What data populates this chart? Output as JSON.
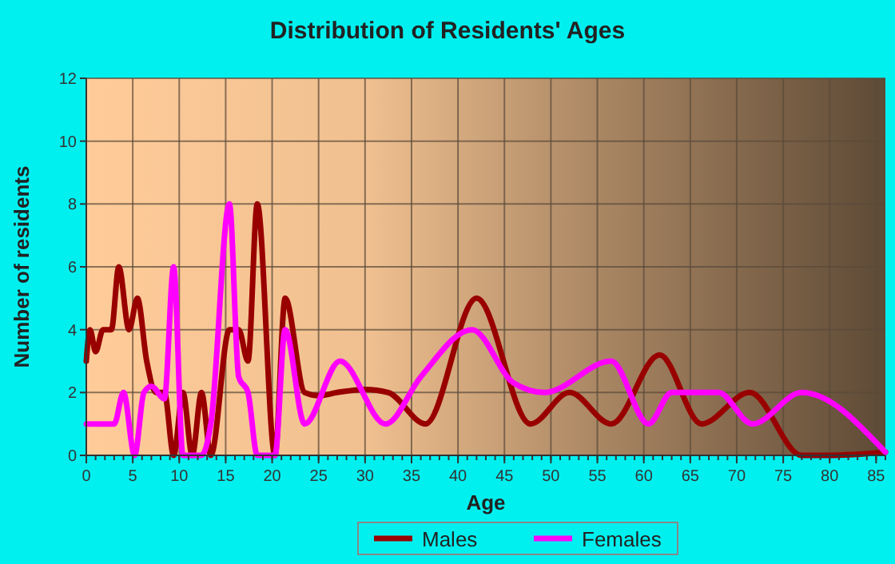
{
  "chart_data": {
    "type": "line",
    "title": "Distribution of Residents' Ages",
    "xlabel": "Age",
    "ylabel": "Number of residents",
    "xlim": [
      0,
      86
    ],
    "xticks": [
      0,
      5,
      10,
      15,
      20,
      25,
      30,
      35,
      40,
      45,
      50,
      55,
      60,
      65,
      70,
      75,
      80,
      85
    ],
    "ylim": [
      0,
      12
    ],
    "yticks": [
      0,
      2,
      4,
      6,
      8,
      10,
      12
    ],
    "grid": true,
    "legend": "bottom",
    "marker": "none",
    "line_style": "solid",
    "series": [
      {
        "name": "Males",
        "color": "#990000",
        "x": [
          0,
          0.4,
          1,
          1.8,
          2.7,
          3.5,
          4.6,
          5.5,
          6.5,
          7.5,
          8.4,
          9.4,
          10.4,
          11.4,
          12.4,
          13.4,
          15.4,
          16.4,
          17.4,
          18.4,
          20.3,
          21.4,
          23.5,
          25,
          27,
          30,
          32.5,
          36.5,
          42,
          47.8,
          52,
          56.5,
          61.7,
          66.2,
          71.4,
          77,
          80,
          86
        ],
        "values": [
          3,
          4,
          3.3,
          4,
          4,
          6,
          4,
          5,
          3,
          2,
          2,
          0,
          2,
          0,
          2,
          0,
          4,
          4,
          3,
          8,
          0,
          5,
          2,
          1.9,
          2,
          2.1,
          2,
          1,
          5,
          1,
          2,
          1,
          3.2,
          1,
          2,
          0,
          0,
          0.1
        ]
      },
      {
        "name": "Females",
        "color": "#ff00ff",
        "x": [
          0,
          3,
          4,
          5.2,
          6.2,
          7,
          8.4,
          9.4,
          10.4,
          12.4,
          13.4,
          15.4,
          16.4,
          17.4,
          18.4,
          20.3,
          21.4,
          23.5,
          27.3,
          32.2,
          36,
          41.5,
          46,
          49.3,
          56.5,
          60.5,
          63,
          68,
          71.7,
          77,
          86
        ],
        "values": [
          1,
          1,
          2,
          0,
          2,
          2.2,
          1.8,
          6,
          0,
          0,
          1,
          8,
          2.5,
          2,
          0,
          0,
          4,
          1,
          3,
          1,
          2.5,
          4,
          2.3,
          2,
          3,
          1,
          2,
          2,
          1,
          2,
          0.1
        ]
      }
    ]
  }
}
